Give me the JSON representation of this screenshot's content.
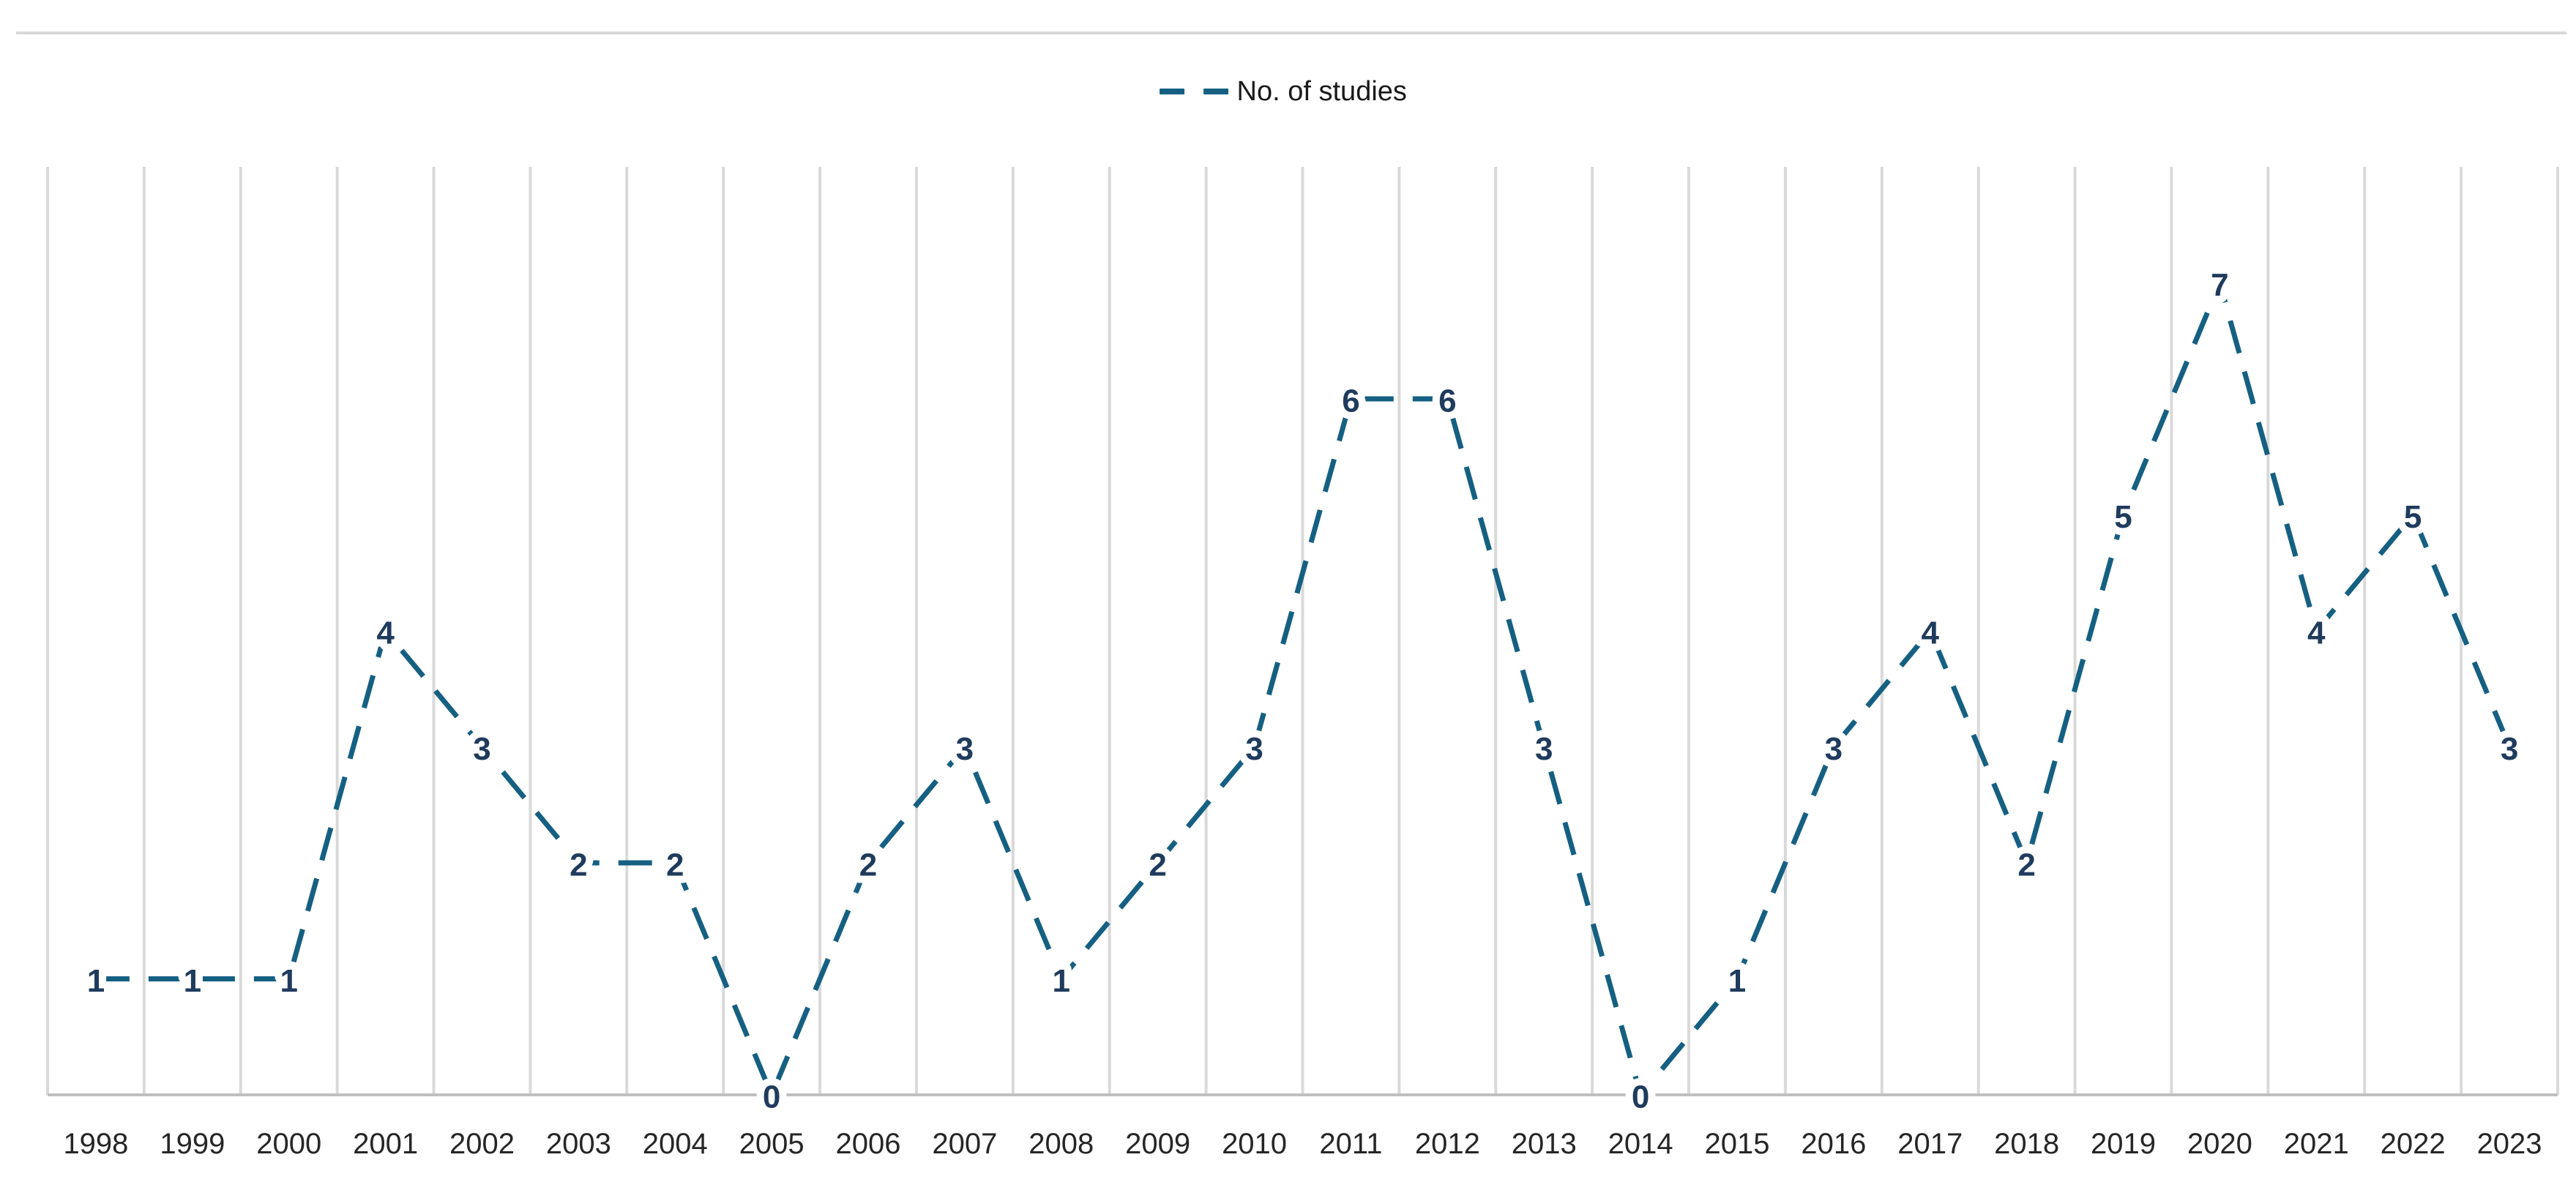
{
  "chart_data": {
    "type": "line",
    "title": "",
    "legend": {
      "label": "No. of studies",
      "position": "top-center"
    },
    "categories": [
      "1998",
      "1999",
      "2000",
      "2001",
      "2002",
      "2003",
      "2004",
      "2005",
      "2006",
      "2007",
      "2008",
      "2009",
      "2010",
      "2011",
      "2012",
      "2013",
      "2014",
      "2015",
      "2016",
      "2017",
      "2018",
      "2019",
      "2020",
      "2021",
      "2022",
      "2023"
    ],
    "series": [
      {
        "name": "No. of studies",
        "values": [
          1,
          1,
          1,
          4,
          3,
          2,
          2,
          0,
          2,
          3,
          1,
          2,
          3,
          6,
          6,
          3,
          0,
          1,
          3,
          4,
          2,
          5,
          7,
          4,
          5,
          3
        ]
      }
    ],
    "xlabel": "",
    "ylabel": "",
    "ylim": [
      0,
      8
    ],
    "grid": "vertical-only",
    "line_style": "dashed",
    "data_label_position": "center"
  },
  "colors": {
    "line": "#156082",
    "data_label": "#1f3b5d",
    "gridline": "#d9d9d9",
    "axis_line": "#bfbfbf",
    "tick_label": "#262626",
    "legend_text": "#1a1a1a",
    "top_border": "#d9d9d9",
    "background": "#ffffff"
  }
}
